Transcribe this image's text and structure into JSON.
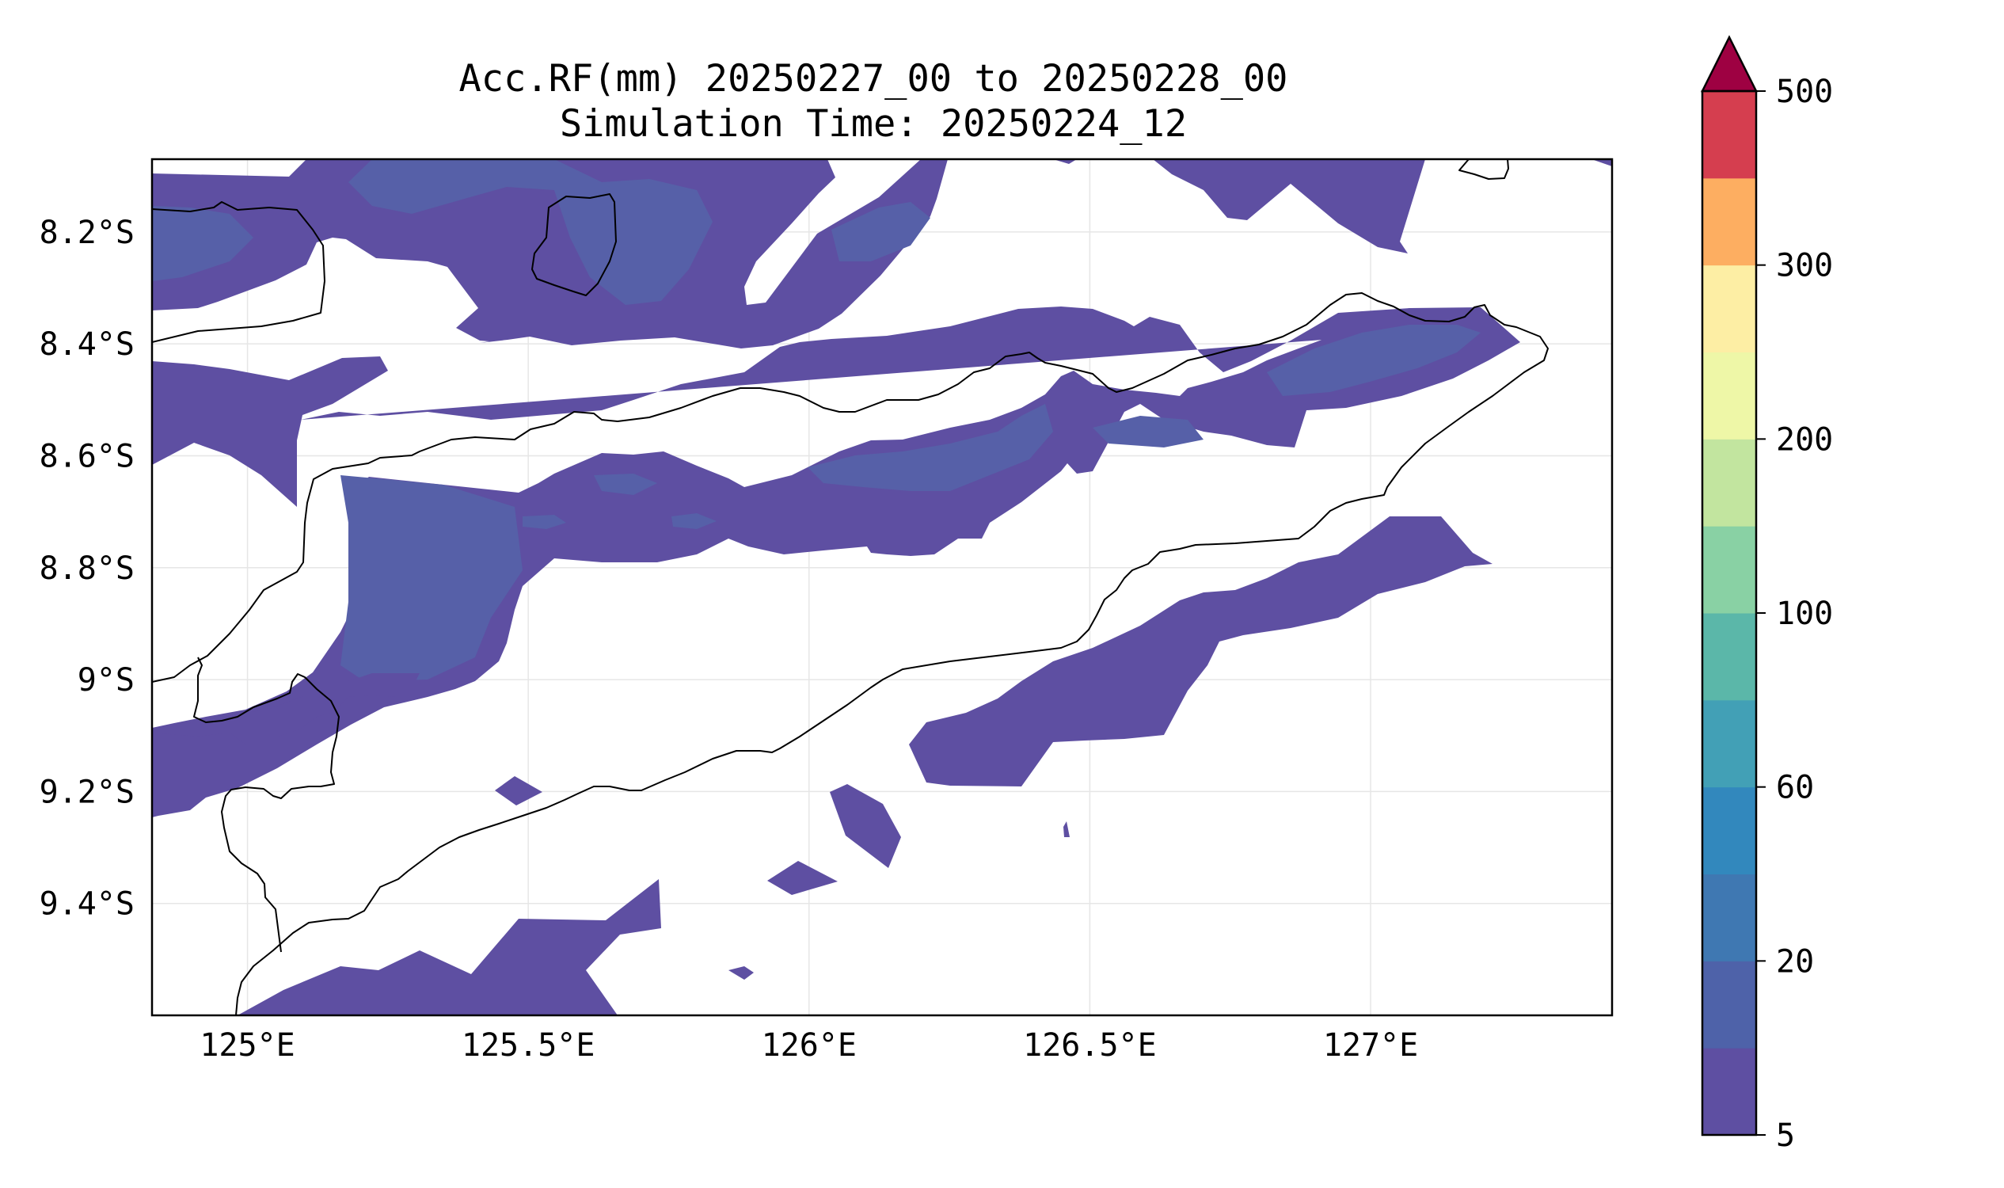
{
  "title": {
    "line1": "Acc.RF(mm) 20250227_00 to 20250228_00",
    "line2": "Simulation Time: 20250224_12"
  },
  "map": {
    "lon_range": [
      124.83,
      127.43
    ],
    "lat_range": [
      -9.6,
      -8.07
    ],
    "lon_ticks": [
      125.0,
      125.5,
      126.0,
      126.5,
      127.0
    ],
    "lon_tick_labels": [
      "125°E",
      "125.5°E",
      "126°E",
      "126.5°E",
      "127°E"
    ],
    "lat_ticks": [
      -8.2,
      -8.4,
      -8.6,
      -8.8,
      -9.0,
      -9.2,
      -9.4
    ],
    "lat_tick_labels": [
      "8.2°S",
      "8.4°S",
      "8.6°S",
      "8.8°S",
      "9°S",
      "9.2°S",
      "9.4°S"
    ],
    "gridlines": true,
    "coastline_color": "#000000",
    "background_color": "#ffffff"
  },
  "colorbar": {
    "levels": [
      5,
      10,
      20,
      40,
      60,
      80,
      100,
      150,
      200,
      250,
      300,
      400,
      500
    ],
    "labeled_levels": [
      "5",
      "20",
      "60",
      "100",
      "200",
      "300",
      "500"
    ],
    "colors": [
      "#5e4fa2",
      "#4e62a9",
      "#3f78b2",
      "#3288bd",
      "#42a0b6",
      "#5bb7a9",
      "#89d1a4",
      "#c2e59f",
      "#eef7a7",
      "#fdeea4",
      "#fdae61",
      "#d53e4f"
    ],
    "extend_max_color": "#9e0142",
    "extend": "max"
  }
}
